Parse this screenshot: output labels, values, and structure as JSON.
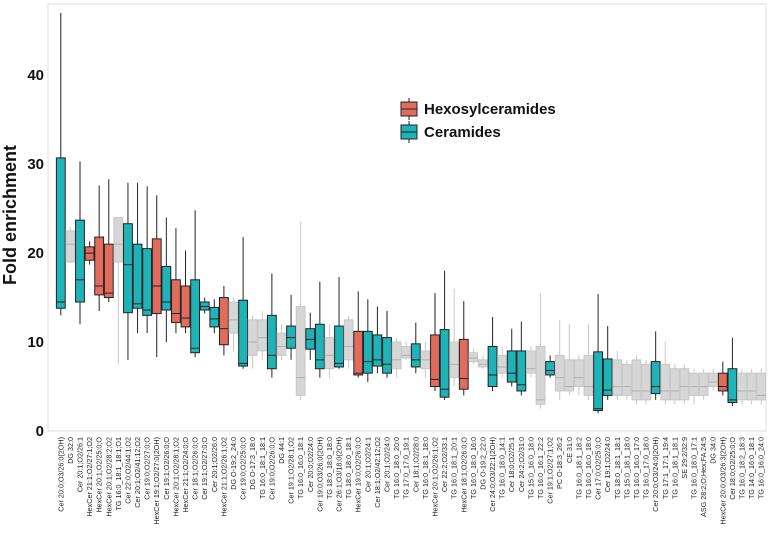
{
  "chart_data": {
    "type": "boxplot",
    "title": "",
    "xlabel": "",
    "ylabel": "Fold enrichment",
    "ylim": [
      0,
      48
    ],
    "yticks": [
      "0",
      "10",
      "20",
      "30",
      "40"
    ],
    "legend": {
      "position": "top-right-inside",
      "items": [
        {
          "name": "Hexosylceramides",
          "color": "#e06c5e"
        },
        {
          "name": "Ceramides",
          "color": "#1fb3b8"
        }
      ]
    },
    "colors": {
      "hex": "#e06c5e",
      "cer": "#1fb3b8",
      "other": "#d6d6d6"
    },
    "boxes": [
      {
        "label": "Cer 20:0;O3/26:0(2OH)",
        "group": "cer",
        "min": 13,
        "q1": 13.8,
        "med": 14.5,
        "q3": 30.7,
        "max": 47
      },
      {
        "label": "DG 32:0",
        "group": "other",
        "min": 19,
        "q1": 19,
        "med": 21,
        "q3": 22.5,
        "max": 23
      },
      {
        "label": "Cer 20:1;O2/26:1",
        "group": "cer",
        "min": 12,
        "q1": 14.5,
        "med": 17,
        "q3": 23.7,
        "max": 30.3
      },
      {
        "label": "HexCer 21:1;O2/27:1;O2",
        "group": "hex",
        "min": 18.7,
        "q1": 19.2,
        "med": 20,
        "q3": 20.7,
        "max": 21.3
      },
      {
        "label": "HexCer 20:1;O2/25:0;O",
        "group": "hex",
        "min": 13.5,
        "q1": 15.3,
        "med": 16.3,
        "q3": 21.8,
        "max": 27.6
      },
      {
        "label": "HexCer 20:1;O2/28:2;O2",
        "group": "hex",
        "min": 14.5,
        "q1": 15,
        "med": 15.5,
        "q3": 21,
        "max": 28.3
      },
      {
        "label": "TG 16:0_18:1_18:1;O1",
        "group": "other",
        "min": 7.5,
        "q1": 19,
        "med": 21,
        "q3": 24,
        "max": 24
      },
      {
        "label": "Cer 22:0;O2/44:1;O2",
        "group": "cer",
        "min": 8,
        "q1": 13.3,
        "med": 18.7,
        "q3": 23.3,
        "max": 27.9
      },
      {
        "label": "Cer 20:1;O2/41:12;O2",
        "group": "cer",
        "min": 11,
        "q1": 13.8,
        "med": 14.3,
        "q3": 21,
        "max": 27.9
      },
      {
        "label": "Cer 19:0;O2/27:0;O",
        "group": "cer",
        "min": 11,
        "q1": 13,
        "med": 13.6,
        "q3": 20.5,
        "max": 27.5
      },
      {
        "label": "HexCer 19:1;O2/27:0(2OH)",
        "group": "hex",
        "min": 8.3,
        "q1": 13.2,
        "med": 16.3,
        "q3": 21.6,
        "max": 26.5
      },
      {
        "label": "Cer 19:1;O2/26:0;O",
        "group": "cer",
        "min": 10,
        "q1": 13.6,
        "med": 14.5,
        "q3": 18.5,
        "max": 24
      },
      {
        "label": "HexCer 20:1;O2/28:1;O2",
        "group": "hex",
        "min": 11,
        "q1": 12.2,
        "med": 13.2,
        "q3": 17,
        "max": 22.8
      },
      {
        "label": "HexCer 21:1;O2/24:0;O",
        "group": "hex",
        "min": 11,
        "q1": 11.7,
        "med": 12.7,
        "q3": 16.3,
        "max": 20.3
      },
      {
        "label": "Cer 18:1;O2/26:0;O",
        "group": "cer",
        "min": 8.3,
        "q1": 8.8,
        "med": 9.3,
        "q3": 17,
        "max": 24.8
      },
      {
        "label": "Cer 19:1;O2/27:0;O",
        "group": "cer",
        "min": 13.2,
        "q1": 13.6,
        "med": 14,
        "q3": 14.5,
        "max": 15
      },
      {
        "label": "Cer 20:1;O2/26:0",
        "group": "cer",
        "min": 11,
        "q1": 11.7,
        "med": 12.6,
        "q3": 13.9,
        "max": 14.8
      },
      {
        "label": "HexCer 21:1;O2/26:1;O2",
        "group": "hex",
        "min": 8.5,
        "q1": 9.7,
        "med": 11.5,
        "q3": 15,
        "max": 16.3
      },
      {
        "label": "DG O-19:2_24:0",
        "group": "other",
        "min": 9,
        "q1": 11,
        "med": 12.5,
        "q3": 14.5,
        "max": 15
      },
      {
        "label": "Cer 19:0;O2/25:0;O",
        "group": "cer",
        "min": 7,
        "q1": 7.3,
        "med": 7.6,
        "q3": 14.7,
        "max": 21.8
      },
      {
        "label": "DG O-17:3_18:0",
        "group": "other",
        "min": 7,
        "q1": 8.5,
        "med": 10,
        "q3": 12.5,
        "max": 13
      },
      {
        "label": "TG 16:0_18:1_18:1",
        "group": "other",
        "min": 8,
        "q1": 9,
        "med": 10.5,
        "q3": 12.5,
        "max": 13.5
      },
      {
        "label": "Cer 19:0;O2/26:0;O",
        "group": "cer",
        "min": 6,
        "q1": 7,
        "med": 8.5,
        "q3": 13,
        "max": 17.7
      },
      {
        "label": "DG 44:1",
        "group": "other",
        "min": 8,
        "q1": 8.5,
        "med": 9.5,
        "q3": 11,
        "max": 12
      },
      {
        "label": "Cer 19:1;O2/28:1;O2",
        "group": "cer",
        "min": 8,
        "q1": 9.3,
        "med": 10.5,
        "q3": 11.8,
        "max": 15.3
      },
      {
        "label": "TG 16:0_16:0_18:1",
        "group": "other",
        "min": 3.5,
        "q1": 4,
        "med": 6,
        "q3": 14,
        "max": 23.5
      },
      {
        "label": "Cer 20:0;O2/24:0",
        "group": "cer",
        "min": 8,
        "q1": 9.2,
        "med": 10.3,
        "q3": 11.5,
        "max": 13.3
      },
      {
        "label": "Cer 19:0;O3/26:0(2OH)",
        "group": "cer",
        "min": 6,
        "q1": 7,
        "med": 8,
        "q3": 12,
        "max": 16.8
      },
      {
        "label": "TG 18:0_18:0_18:0",
        "group": "other",
        "min": 6,
        "q1": 7,
        "med": 8.5,
        "q3": 10.5,
        "max": 12
      },
      {
        "label": "Cer 26:1;O3/18:0(2OH)",
        "group": "cer",
        "min": 7,
        "q1": 7.2,
        "med": 7.6,
        "q3": 11.8,
        "max": 17.3
      },
      {
        "label": "TG 18:0_18:0_18:1",
        "group": "other",
        "min": 7,
        "q1": 8,
        "med": 9.5,
        "q3": 12.5,
        "max": 13
      },
      {
        "label": "HexCer 19:0;O2/26:0;O",
        "group": "hex",
        "min": 6,
        "q1": 6.3,
        "med": 6.5,
        "q3": 11.2,
        "max": 15.7
      },
      {
        "label": "Cer 20:1;O2/24:1",
        "group": "cer",
        "min": 5.5,
        "q1": 6.5,
        "med": 7.8,
        "q3": 11.2,
        "max": 14.8
      },
      {
        "label": "Cer 18:1;O2/42:12;O2",
        "group": "cer",
        "min": 6.5,
        "q1": 7.3,
        "med": 8,
        "q3": 10.8,
        "max": 14
      },
      {
        "label": "Cer 20:1;O2/24:0",
        "group": "cer",
        "min": 6,
        "q1": 6.5,
        "med": 7.5,
        "q3": 10.5,
        "max": 13.5
      },
      {
        "label": "TG 16:0_18:0_20:0",
        "group": "other",
        "min": 6,
        "q1": 7,
        "med": 8,
        "q3": 10,
        "max": 10.5
      },
      {
        "label": "TG 17:0_17:0_19:1",
        "group": "other",
        "min": 8,
        "q1": 8.2,
        "med": 8.5,
        "q3": 9.5,
        "max": 10
      },
      {
        "label": "Cer 18:1;O2/28:0",
        "group": "cer",
        "min": 6.5,
        "q1": 7.2,
        "med": 8,
        "q3": 9.8,
        "max": 12.2
      },
      {
        "label": "TG 16:0_18:1_18:0",
        "group": "other",
        "min": 6,
        "q1": 7,
        "med": 8,
        "q3": 9,
        "max": 10
      },
      {
        "label": "HexCer 20:1;O2/26:1;O2",
        "group": "hex",
        "min": 4.5,
        "q1": 5,
        "med": 5.8,
        "q3": 10.8,
        "max": 15.5
      },
      {
        "label": "Cer 22:2;O2/33:1",
        "group": "cer",
        "min": 3.5,
        "q1": 3.8,
        "med": 4.7,
        "q3": 11.4,
        "max": 18
      },
      {
        "label": "TG 16:0_18:1_20:1",
        "group": "other",
        "min": 5,
        "q1": 6,
        "med": 7.5,
        "q3": 10,
        "max": 16
      },
      {
        "label": "HexCer 18:1;O2/26:0;O",
        "group": "hex",
        "min": 4,
        "q1": 4.7,
        "med": 5.9,
        "q3": 10.3,
        "max": 14.6
      },
      {
        "label": "TG 16:0_18:0_16:0",
        "group": "other",
        "min": 7.5,
        "q1": 7.8,
        "med": 8.2,
        "q3": 8.8,
        "max": 9.3
      },
      {
        "label": "DG O-19:2_22:0",
        "group": "other",
        "min": 7,
        "q1": 7.2,
        "med": 7.5,
        "q3": 8,
        "max": 8.5
      },
      {
        "label": "Cer 24:0;O3/22:1(2OH)",
        "group": "cer",
        "min": 4.5,
        "q1": 5,
        "med": 6.3,
        "q3": 9.5,
        "max": 12.8
      },
      {
        "label": "TG 16:0_18:0_14:1",
        "group": "other",
        "min": 6,
        "q1": 6.5,
        "med": 7.2,
        "q3": 8.5,
        "max": 9.5
      },
      {
        "label": "Cer 18:0;O2/25:1",
        "group": "cer",
        "min": 5,
        "q1": 5.5,
        "med": 6.5,
        "q3": 9,
        "max": 11.5
      },
      {
        "label": "Cer 24:2;O2/31:0",
        "group": "cer",
        "min": 4,
        "q1": 4.5,
        "med": 5.2,
        "q3": 9,
        "max": 12.3
      },
      {
        "label": "TG 15:0_16:0_18:0",
        "group": "other",
        "min": 6,
        "q1": 6.5,
        "med": 7,
        "q3": 9,
        "max": 9.5
      },
      {
        "label": "TG 16:0_16:1_22:2",
        "group": "other",
        "min": 2.5,
        "q1": 3,
        "med": 3.5,
        "q3": 9.5,
        "max": 15.5
      },
      {
        "label": "Cer 19:1;O2/27:1;O2",
        "group": "cer",
        "min": 6,
        "q1": 6.3,
        "med": 6.8,
        "q3": 7.8,
        "max": 8.5
      },
      {
        "label": "PC O-18:3_26:2",
        "group": "other",
        "min": 3.5,
        "q1": 4.5,
        "med": 6,
        "q3": 8.5,
        "max": 12.5
      },
      {
        "label": "CE 31:0",
        "group": "other",
        "min": 4,
        "q1": 4.5,
        "med": 5,
        "q3": 8,
        "max": 12
      },
      {
        "label": "TG 16:0_18:1_18:2",
        "group": "other",
        "min": 4,
        "q1": 5,
        "med": 6,
        "q3": 8,
        "max": 8.5
      },
      {
        "label": "TG 16:0_16:0_18:0",
        "group": "other",
        "min": 3.5,
        "q1": 4,
        "med": 5,
        "q3": 8.5,
        "max": 12
      },
      {
        "label": "Cer 17:0;O2/25:0;O",
        "group": "cer",
        "min": 2,
        "q1": 2.3,
        "med": 2.5,
        "q3": 8.9,
        "max": 15.4
      },
      {
        "label": "Cer 19:1;O2/24:0",
        "group": "cer",
        "min": 3.5,
        "q1": 4,
        "med": 4.6,
        "q3": 8.1,
        "max": 11.8
      },
      {
        "label": "TG 18:0_18:1_18:1",
        "group": "other",
        "min": 3.5,
        "q1": 4,
        "med": 5,
        "q3": 8,
        "max": 9
      },
      {
        "label": "TG 15:0_18:1_18:0",
        "group": "other",
        "min": 3.5,
        "q1": 4,
        "med": 5,
        "q3": 7.5,
        "max": 8
      },
      {
        "label": "TG 16:0_16:0_17:0",
        "group": "other",
        "min": 3,
        "q1": 3.5,
        "med": 4.5,
        "q3": 8,
        "max": 8.5
      },
      {
        "label": "TG 16:0_17:0_18:0",
        "group": "other",
        "min": 3,
        "q1": 3.5,
        "med": 4.5,
        "q3": 7.5,
        "max": 8
      },
      {
        "label": "Cer 20:0;O3/24:0(2OH)",
        "group": "cer",
        "min": 3.5,
        "q1": 4.2,
        "med": 5,
        "q3": 7.8,
        "max": 11.2
      },
      {
        "label": "TG 17:1_17:1_19:4",
        "group": "other",
        "min": 3,
        "q1": 3.5,
        "med": 4.5,
        "q3": 7.5,
        "max": 10
      },
      {
        "label": "TG 16:0_18:1_18:1",
        "group": "other",
        "min": 3,
        "q1": 3.5,
        "med": 4.5,
        "q3": 7,
        "max": 7.5
      },
      {
        "label": "SE 29:2/32:9",
        "group": "other",
        "min": 3,
        "q1": 3.5,
        "med": 5,
        "q3": 7,
        "max": 7.5
      },
      {
        "label": "TG 16:0_18:0_17:1",
        "group": "other",
        "min": 3,
        "q1": 4,
        "med": 5,
        "q3": 6.5,
        "max": 7
      },
      {
        "label": "ASG 28:2;O;Hex;FA 24:5",
        "group": "other",
        "min": 3.5,
        "q1": 4,
        "med": 5,
        "q3": 6.5,
        "max": 7
      },
      {
        "label": "DG 34:0",
        "group": "other",
        "min": 4.5,
        "q1": 5,
        "med": 5.5,
        "q3": 6.5,
        "max": 7
      },
      {
        "label": "HexCer 20:0;O3/26:3(2OH)",
        "group": "hex",
        "min": 4,
        "q1": 4.5,
        "med": 5,
        "q3": 6.5,
        "max": 7.8
      },
      {
        "label": "Cer 18:0;O2/25:0;O",
        "group": "cer",
        "min": 2.8,
        "q1": 3.2,
        "med": 3.5,
        "q3": 7,
        "max": 10.5
      },
      {
        "label": "TG 16:0_18:2_18:3",
        "group": "other",
        "min": 3,
        "q1": 3.5,
        "med": 4.5,
        "q3": 6.5,
        "max": 7
      },
      {
        "label": "TG 14:0_16:0_18:1",
        "group": "other",
        "min": 3,
        "q1": 3.5,
        "med": 4.5,
        "q3": 6.5,
        "max": 7
      },
      {
        "label": "TG 16:0_16:0_24:0",
        "group": "other",
        "min": 3,
        "q1": 3.5,
        "med": 4,
        "q3": 6.5,
        "max": 7
      }
    ]
  }
}
